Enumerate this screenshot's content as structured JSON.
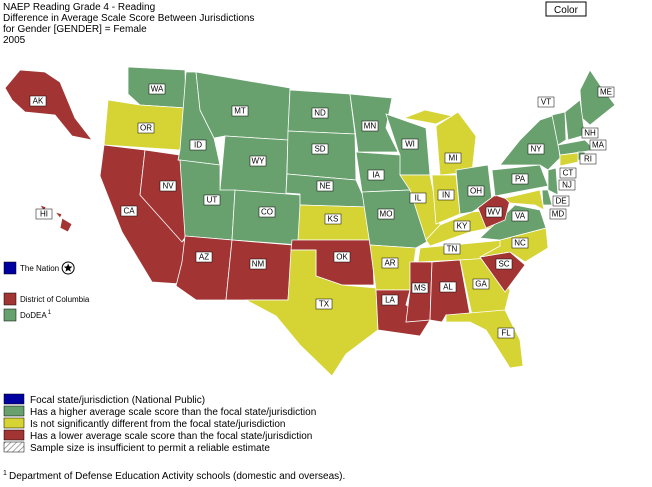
{
  "header": {
    "lines": [
      "NAEP Reading Grade 4 - Reading",
      "Difference in Average Scale Score Between Jurisdictions",
      "for Gender [GENDER] = Female",
      "2005"
    ]
  },
  "button": {
    "label": "Color"
  },
  "states": [
    {
      "label": "AK",
      "color": "#a33434"
    },
    {
      "label": "HI",
      "color": "#a33434"
    },
    {
      "label": "WA",
      "color": "#68a06e"
    },
    {
      "label": "OR",
      "color": "#d6d334"
    },
    {
      "label": "CA",
      "color": "#a33434"
    },
    {
      "label": "NV",
      "color": "#a33434"
    },
    {
      "label": "ID",
      "color": "#68a06e"
    },
    {
      "label": "MT",
      "color": "#68a06e"
    },
    {
      "label": "WY",
      "color": "#68a06e"
    },
    {
      "label": "UT",
      "color": "#68a06e"
    },
    {
      "label": "CO",
      "color": "#68a06e"
    },
    {
      "label": "AZ",
      "color": "#a33434"
    },
    {
      "label": "NM",
      "color": "#a33434"
    },
    {
      "label": "ND",
      "color": "#68a06e"
    },
    {
      "label": "SD",
      "color": "#68a06e"
    },
    {
      "label": "NE",
      "color": "#68a06e"
    },
    {
      "label": "KS",
      "color": "#d6d334"
    },
    {
      "label": "OK",
      "color": "#a33434"
    },
    {
      "label": "TX",
      "color": "#d6d334"
    },
    {
      "label": "MN",
      "color": "#68a06e"
    },
    {
      "label": "IA",
      "color": "#68a06e"
    },
    {
      "label": "MO",
      "color": "#68a06e"
    },
    {
      "label": "AR",
      "color": "#d6d334"
    },
    {
      "label": "LA",
      "color": "#a33434"
    },
    {
      "label": "WI",
      "color": "#68a06e"
    },
    {
      "label": "IL",
      "color": "#d6d334"
    },
    {
      "label": "MI",
      "color": "#d6d334"
    },
    {
      "label": "IN",
      "color": "#d6d334"
    },
    {
      "label": "OH",
      "color": "#68a06e"
    },
    {
      "label": "KY",
      "color": "#d6d334"
    },
    {
      "label": "TN",
      "color": "#d6d334"
    },
    {
      "label": "MS",
      "color": "#a33434"
    },
    {
      "label": "AL",
      "color": "#a33434"
    },
    {
      "label": "GA",
      "color": "#d6d334"
    },
    {
      "label": "FL",
      "color": "#d6d334"
    },
    {
      "label": "SC",
      "color": "#a33434"
    },
    {
      "label": "NC",
      "color": "#d6d334"
    },
    {
      "label": "VA",
      "color": "#68a06e"
    },
    {
      "label": "WV",
      "color": "#a33434"
    },
    {
      "label": "PA",
      "color": "#68a06e"
    },
    {
      "label": "NY",
      "color": "#68a06e"
    },
    {
      "label": "ME",
      "color": "#68a06e"
    },
    {
      "label": "VT",
      "color": "#68a06e"
    },
    {
      "label": "NH",
      "color": "#68a06e"
    },
    {
      "label": "MA",
      "color": "#68a06e"
    },
    {
      "label": "RI",
      "color": "#68a06e"
    },
    {
      "label": "CT",
      "color": "#d6d334"
    },
    {
      "label": "NJ",
      "color": "#68a06e"
    },
    {
      "label": "DE",
      "color": "#68a06e"
    },
    {
      "label": "MD",
      "color": "#d6d334"
    }
  ],
  "side_items": [
    {
      "label": "The Nation",
      "color": "#0000a0"
    },
    {
      "label": "District of Columbia",
      "color": "#a33434"
    },
    {
      "label": "DoDEA",
      "note": "1",
      "color": "#68a06e"
    }
  ],
  "legend": [
    {
      "label": "Focal state/jurisdiction (National Public)",
      "color": "#0000a0"
    },
    {
      "label": "Has a higher average scale score than the focal state/jurisdiction",
      "color": "#68a06e"
    },
    {
      "label": "Is not significantly different from the focal state/jurisdiction",
      "color": "#d6d334"
    },
    {
      "label": "Has a lower average scale score than the focal state/jurisdiction",
      "color": "#a33434"
    },
    {
      "label": "Sample size is insufficient to permit a reliable estimate",
      "color": "hatch"
    }
  ],
  "footnote": {
    "mark": "1",
    "text": "Department of Defense Education Activity schools (domestic and overseas)."
  }
}
